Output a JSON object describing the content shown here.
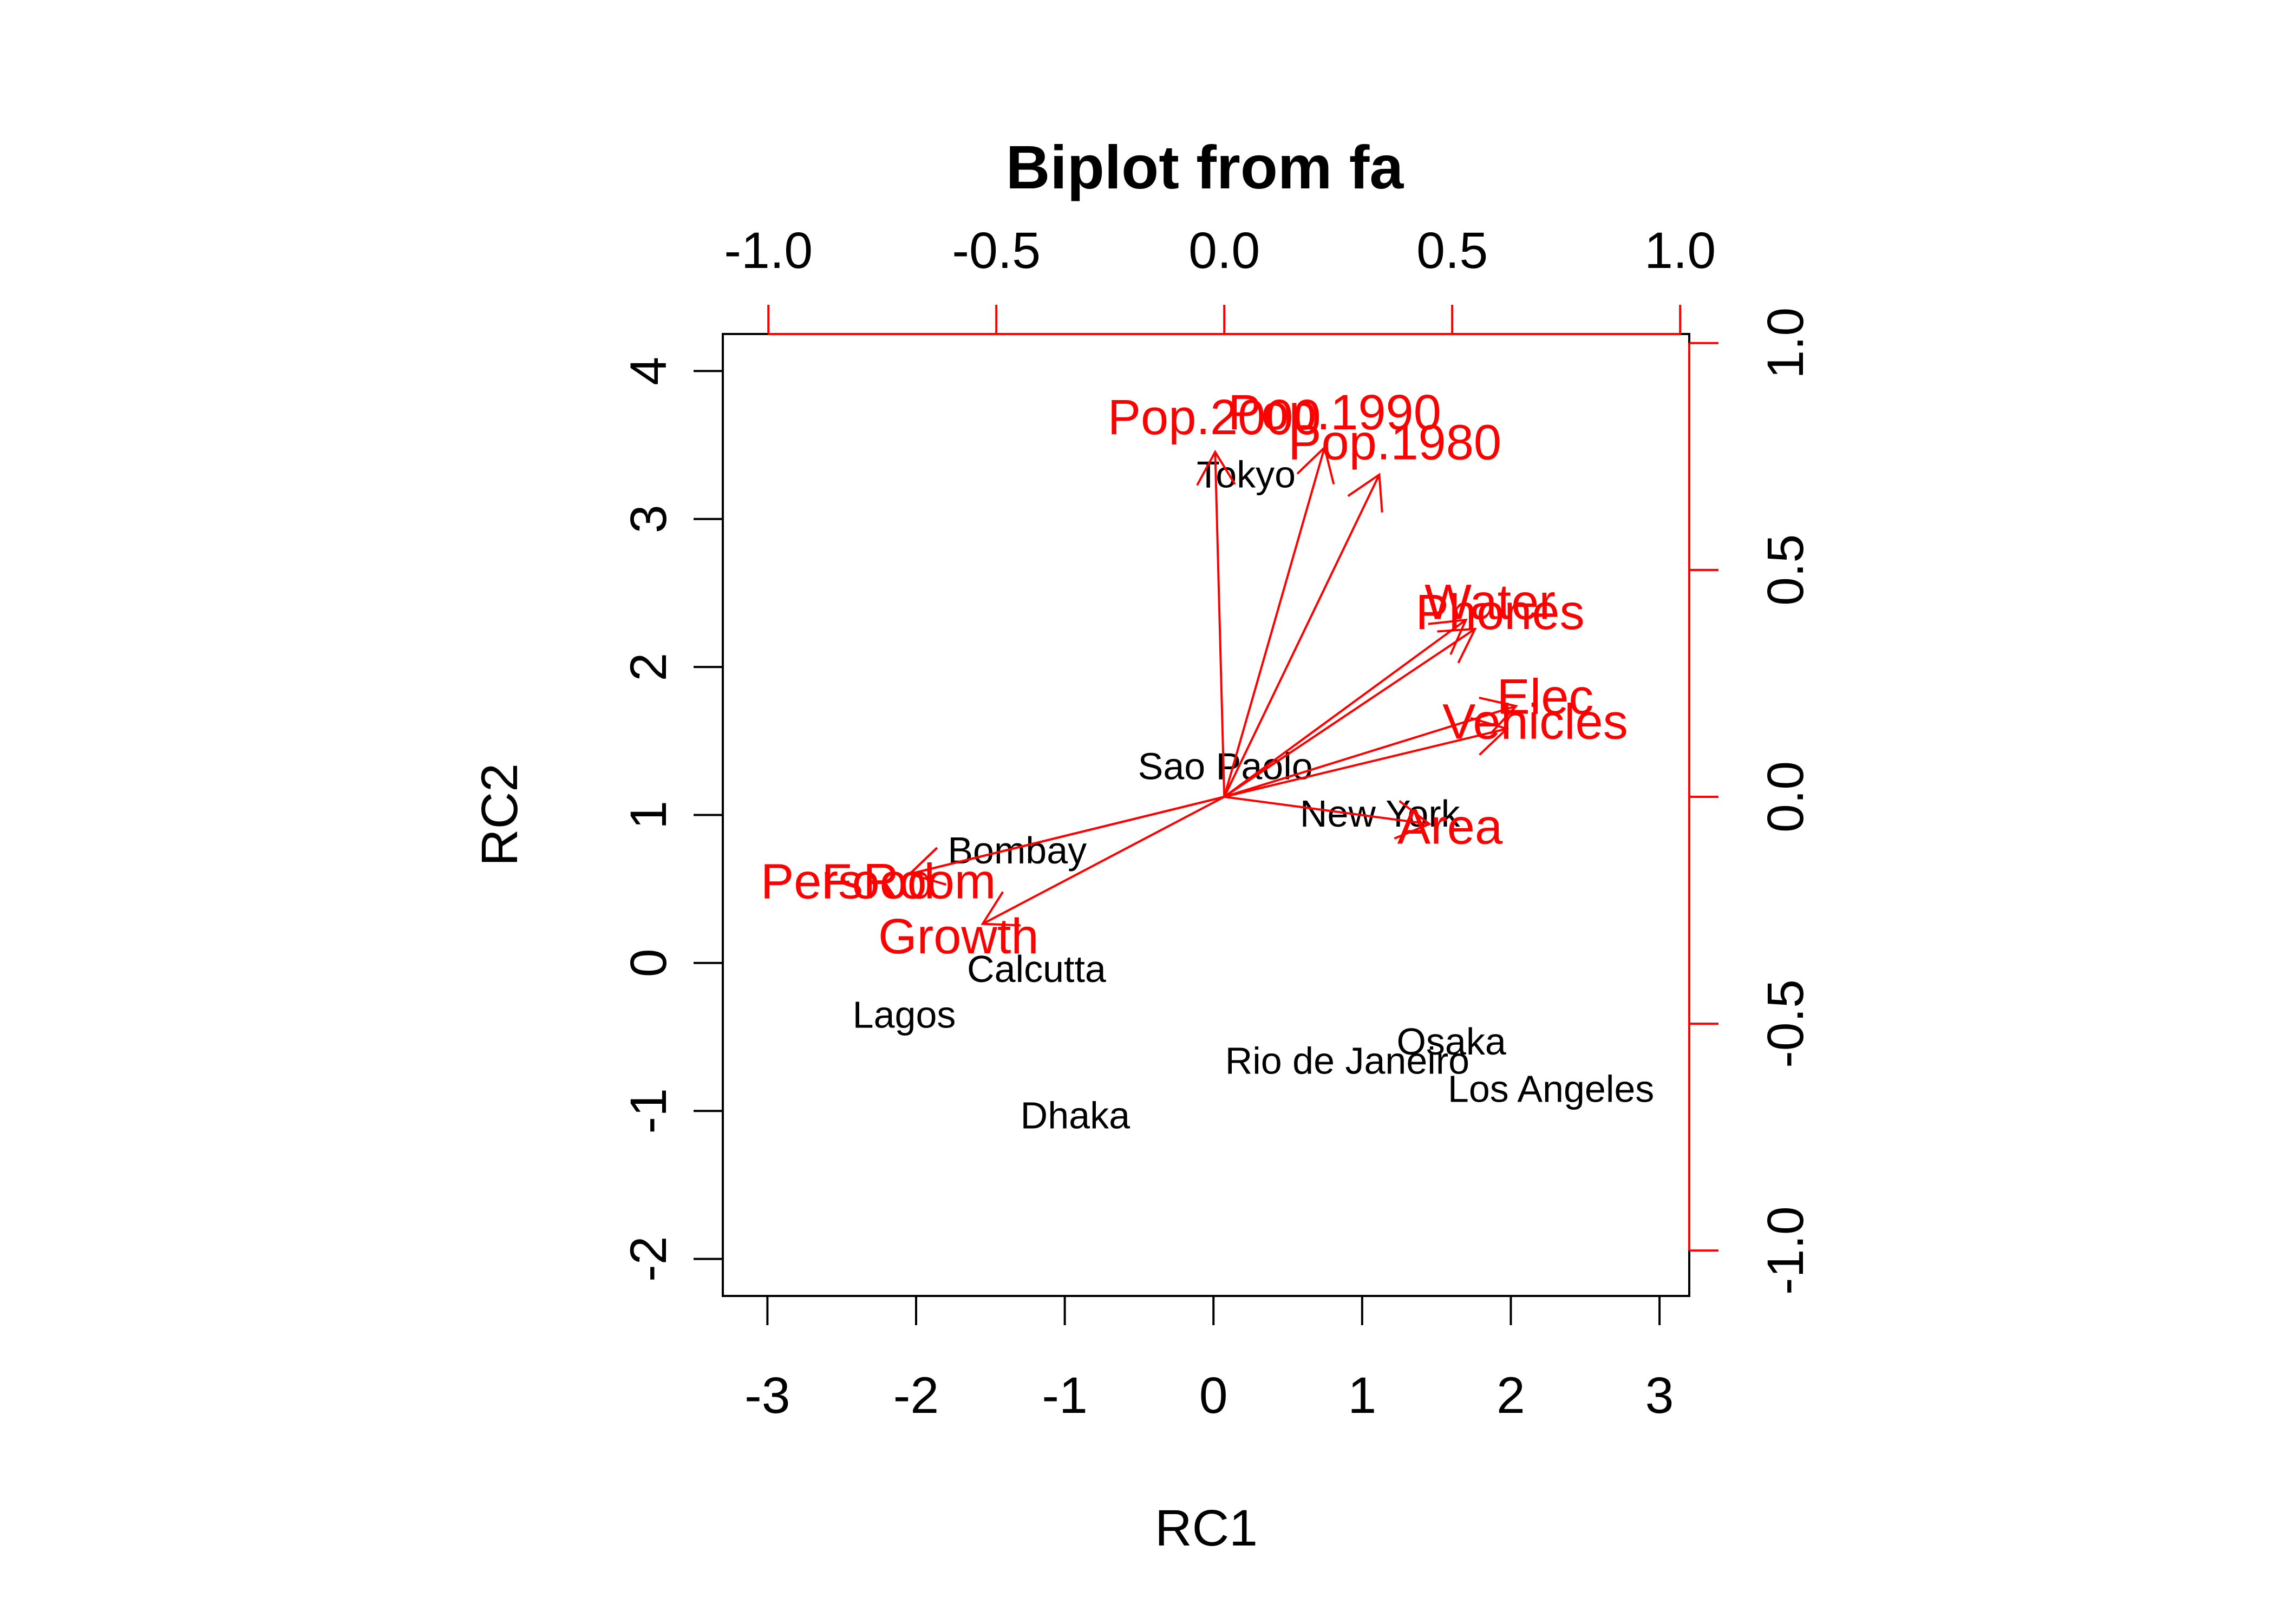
{
  "chart_data": {
    "type": "scatter",
    "title": "Biplot from fa",
    "xlabel": "RC1",
    "ylabel": "RC2",
    "xlim": [
      -3.3,
      3.2
    ],
    "ylim": [
      -2.25,
      4.25
    ],
    "x_ticks": [
      "-3",
      "-2",
      "-1",
      "0",
      "1",
      "2",
      "3"
    ],
    "y_ticks": [
      "-2",
      "-1",
      "0",
      "1",
      "2",
      "3",
      "4"
    ],
    "loading_x_ticks": [
      "-1.0",
      "-0.5",
      "0.0",
      "0.5",
      "1.0"
    ],
    "loading_y_ticks": [
      "-1.0",
      "-0.5",
      "0.0",
      "0.5",
      "1.0"
    ],
    "loading_lim": [
      -1.1,
      1.02
    ],
    "series": [
      {
        "name": "",
        "points": [
          {
            "label": "Tokyo",
            "x": 0.22,
            "y": 3.3
          },
          {
            "label": "Sao Paolo",
            "x": 0.08,
            "y": 1.33
          },
          {
            "label": "New York",
            "x": 1.12,
            "y": 1.01
          },
          {
            "label": "Bombay",
            "x": -1.32,
            "y": 0.76
          },
          {
            "label": "Calcutta",
            "x": -1.19,
            "y": -0.04
          },
          {
            "label": "Lagos",
            "x": -2.08,
            "y": -0.35
          },
          {
            "label": "Osaka",
            "x": 1.6,
            "y": -0.53
          },
          {
            "label": "Rio de Janeiro",
            "x": 0.9,
            "y": -0.66
          },
          {
            "label": "Los Angeles",
            "x": 2.27,
            "y": -0.85
          },
          {
            "label": "Dhaka",
            "x": -0.93,
            "y": -1.03
          }
        ]
      },
      {
        "name": "",
        "loadings": [
          {
            "label": "Pop.2000",
            "x": -0.02,
            "y": 0.76
          },
          {
            "label": "Pop.1990",
            "x": 0.22,
            "y": 0.77
          },
          {
            "label": "Pop.1980",
            "x": 0.34,
            "y": 0.71
          },
          {
            "label": "Water",
            "x": 0.53,
            "y": 0.39
          },
          {
            "label": "Phones",
            "x": 0.55,
            "y": 0.37
          },
          {
            "label": "Elec",
            "x": 0.64,
            "y": 0.2
          },
          {
            "label": "Vehicles",
            "x": 0.62,
            "y": 0.15
          },
          {
            "label": "Area",
            "x": 0.45,
            "y": -0.06
          },
          {
            "label": "Food",
            "x": -0.69,
            "y": -0.17
          },
          {
            "label": "PersRoom",
            "x": -0.69,
            "y": -0.17
          },
          {
            "label": "Growth",
            "x": -0.53,
            "y": -0.28
          }
        ]
      }
    ],
    "colors": {
      "points": "#000000",
      "loadings": "#ff0000",
      "frame": "#000000"
    },
    "grid": false,
    "legend": "none"
  }
}
